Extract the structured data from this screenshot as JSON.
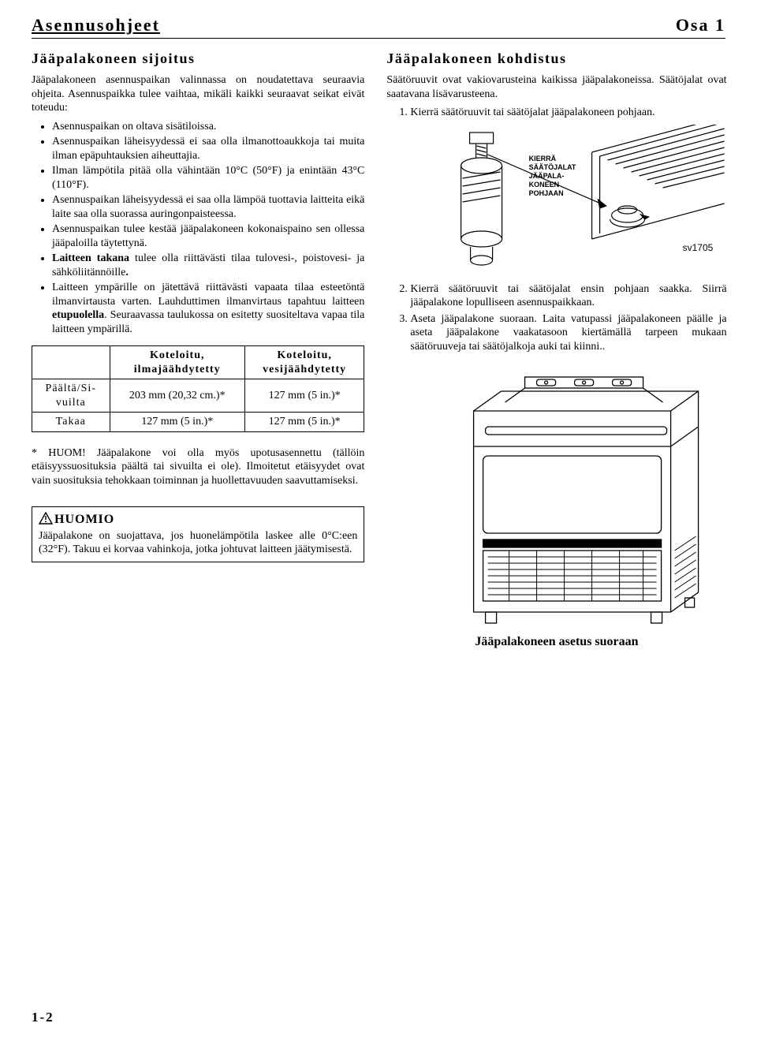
{
  "header": {
    "section": "Asennusohjeet",
    "part": "Osa 1"
  },
  "left": {
    "title": "Jääpalakoneen sijoitus",
    "intro1": "Jääpalakoneen asennuspaikan valinnassa on noudatettava seuraavia ohjeita. Asennuspaikka tulee vaihtaa, mikäli kaikki seuraavat seikat eivät toteudu:",
    "bullets": [
      {
        "text": "Asennuspaikan on oltava sisätiloissa."
      },
      {
        "text": "Asennuspaikan läheisyydessä ei saa olla ilmanottoaukkoja tai muita ilman epäpuhtauksien aiheuttajia."
      },
      {
        "text": "Ilman lämpötila pitää olla vähintään 10°C (50°F) ja enintään 43°C (110°F)."
      },
      {
        "text": "Asennuspaikan läheisyydessä ei saa olla lämpöä tuottavia laitteita eikä laite saa olla suorassa auringonpaisteessa."
      },
      {
        "text": "Asennuspaikan tulee kestää jääpalakoneen kokonaispaino sen ollessa jääpaloilla täytettynä."
      },
      {
        "text": "<b>Laitteen takana</b> tulee olla riittävästi tilaa tulovesi-, poistovesi- ja sähköliitännöille<b>.</b>"
      },
      {
        "text": "Laitteen ympärille on jätettävä riittävästi vapaata tilaa esteetöntä ilmanvirtausta varten. Lauhduttimen ilmanvirtaus tapahtuu laitteen <b>etupuolella</b>. Seuraavassa taulukossa on esitetty suositeltava vapaa tila laitteen ympärillä."
      }
    ],
    "table": {
      "cols": [
        "",
        "Koteloitu,\nilmajäähdytetty",
        "Koteloitu,\nvesijäähdytetty"
      ],
      "rows": [
        [
          "Päältä/Si-\nvuilta",
          "203 mm (20,32 cm.)*",
          "127 mm (5 in.)*"
        ],
        [
          "Takaa",
          "127 mm (5 in.)*",
          "127 mm (5 in.)*"
        ]
      ]
    },
    "note": "* HUOM! Jääpalakone voi olla myös upotusasennettu (tällöin etäisyyssuosituksia päältä tai sivuilta ei ole). Ilmoitetut etäisyydet ovat vain suosituksia tehokkaan toiminnan ja huollettavuuden saavuttamiseksi.",
    "caution_title": "HUOMIO",
    "caution_text": "Jääpalakone on suojattava, jos huonelämpötila laskee alle 0°C:een (32°F). Takuu ei korvaa vahinkoja, jotka johtuvat laitteen jäätymisestä."
  },
  "right": {
    "title": "Jääpalakoneen kohdistus",
    "intro": "Säätöruuvit ovat vakiovarusteina kaikissa jääpalakoneissa. Säätöjalat ovat saatavana lisävarusteena.",
    "step1": "Kierrä säätöruuvit tai säätöjalat jääpalakoneen pohjaan.",
    "diagram": {
      "label": "KIERRÄ\nSÄÄTÖJALAT\nJÄÄPALA-\nKONEEN\nPOHJAAN",
      "code": "sv1705"
    },
    "step2": "Kierrä säätöruuvit tai säätöjalat ensin pohjaan saakka. Siirrä jääpalakone lopulliseen asennuspaikkaan.",
    "step3": "Aseta jääpalakone suoraan. Laita vatupassi jääpalakoneen päälle ja aseta jääpalakone vaakatasoon kiertämällä tarpeen mukaan säätöruuveja tai säätöjalkoja auki tai kiinni..",
    "caption2": "Jääpalakoneen asetus suoraan"
  },
  "page_num": "1-2"
}
